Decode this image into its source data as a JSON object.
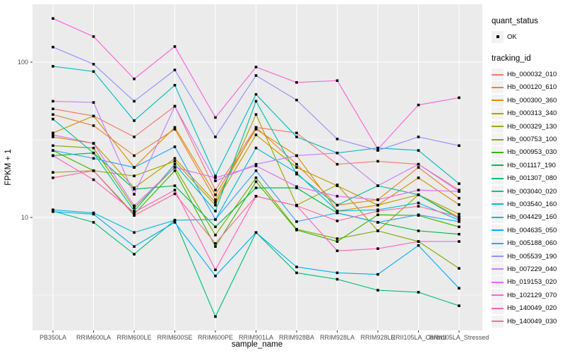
{
  "chart": {
    "panel_bg": "#ebebeb",
    "grid_color": "#ffffff",
    "tick_color": "#333333",
    "tick_label_color": "#4d4d4d",
    "point_color": "#000000",
    "y_tick_labels": [
      "100",
      "10"
    ],
    "y_tick_values": [
      100,
      10
    ]
  },
  "legend": {
    "quant_status_title": "quant_status",
    "quant_status_items": [
      {
        "label": "OK",
        "symbol": "point"
      }
    ],
    "tracking_title": "tracking_id"
  },
  "chart_data": {
    "type": "line",
    "title": "",
    "xlabel": "sample_name",
    "ylabel": "FPKM + 1",
    "y_scale": "log10",
    "ylim": [
      1.9,
      230
    ],
    "grid": true,
    "legend_position": "right",
    "point_shape": "filled-square",
    "x": [
      "PB350LA",
      "RRIM600LA",
      "RRIM600LE",
      "RRIM600SE",
      "RRIM600PE",
      "RRIM901LA",
      "RRIM928BA",
      "RRIM928LA",
      "RRIM928LE",
      "RRII105LA_Control",
      "RRII105LA_Stressed"
    ],
    "series": [
      {
        "name": "Hb_000032_010",
        "color": "#F8766D",
        "values": [
          50,
          45,
          33,
          52,
          15,
          38,
          35,
          22,
          23,
          22,
          15
        ]
      },
      {
        "name": "Hb_000120_610",
        "color": "#EA8331",
        "values": [
          46,
          39,
          25,
          37,
          13,
          38,
          22,
          12,
          13,
          21,
          13.3
        ]
      },
      {
        "name": "Hb_000300_360",
        "color": "#D89000",
        "values": [
          35,
          45,
          21,
          38,
          14,
          37,
          25,
          11,
          12,
          18,
          12.1
        ]
      },
      {
        "name": "Hb_000313_340",
        "color": "#C09B00",
        "values": [
          33,
          30,
          15.5,
          24,
          12.5,
          34,
          21,
          16,
          12,
          14,
          10
        ]
      },
      {
        "name": "Hb_000329_130",
        "color": "#A3A500",
        "values": [
          19.5,
          20,
          18.5,
          23,
          12,
          46,
          12,
          16.2,
          8.2,
          14,
          10.5
        ]
      },
      {
        "name": "Hb_000753_100",
        "color": "#7CAE00",
        "values": [
          29,
          28,
          11.5,
          21,
          7.7,
          18,
          8.4,
          7.3,
          8.2,
          7,
          4.7
        ]
      },
      {
        "name": "Hb_000953_030",
        "color": "#39B600",
        "values": [
          27,
          20,
          10.5,
          20,
          6.5,
          17,
          8.3,
          7,
          10.4,
          10.3,
          8.7
        ]
      },
      {
        "name": "Hb_001117_190",
        "color": "#00BB4E",
        "values": [
          25,
          26,
          15.2,
          16,
          8.7,
          15.5,
          15.5,
          10.7,
          9.3,
          8.2,
          7.8
        ]
      },
      {
        "name": "Hb_001307_080",
        "color": "#00BF7D",
        "values": [
          11,
          9.3,
          5.8,
          9.6,
          2.3,
          8,
          4.4,
          4,
          3.4,
          3.3,
          2.7
        ]
      },
      {
        "name": "Hb_003040_020",
        "color": "#00C1A3",
        "values": [
          43,
          26,
          11,
          22,
          11,
          56,
          19,
          12,
          16,
          14,
          9.8
        ]
      },
      {
        "name": "Hb_003540_160",
        "color": "#00BFC4",
        "values": [
          94,
          87,
          42,
          71,
          18.5,
          62,
          33,
          26,
          28,
          27,
          16.5
        ]
      },
      {
        "name": "Hb_004429_160",
        "color": "#00BAE0",
        "values": [
          11.2,
          10.7,
          8,
          9.6,
          9.7,
          28,
          19.4,
          11,
          11.2,
          12.4,
          9.6
        ]
      },
      {
        "name": "Hb_004635_050",
        "color": "#00B0F6",
        "values": [
          10.9,
          10.5,
          6.5,
          9.3,
          4.2,
          8,
          4.8,
          4.4,
          4.3,
          6.6,
          3.5
        ]
      },
      {
        "name": "Hb_005188_060",
        "color": "#35A2FF",
        "values": [
          27,
          24,
          21,
          28.5,
          9.7,
          20,
          9.4,
          10.7,
          9.3,
          10.4,
          9.4
        ]
      },
      {
        "name": "Hb_005539_190",
        "color": "#9590FF",
        "values": [
          125,
          97,
          56,
          89,
          33,
          82,
          57,
          32,
          27,
          33,
          29
        ]
      },
      {
        "name": "Hb_007229_040",
        "color": "#C77CFF",
        "values": [
          56,
          55,
          14.1,
          52,
          17.2,
          22,
          25,
          26,
          16,
          22,
          14.7
        ]
      },
      {
        "name": "Hb_019153_020",
        "color": "#E76BF3",
        "values": [
          34,
          30,
          11.9,
          21,
          18,
          21.5,
          15.8,
          13.7,
          13,
          15,
          14.7
        ]
      },
      {
        "name": "Hb_102129_070",
        "color": "#FA62DB",
        "values": [
          191,
          146,
          78,
          126,
          44,
          93,
          74,
          76,
          27.5,
          53,
          59
        ]
      },
      {
        "name": "Hb_140049_020",
        "color": "#FF62BC",
        "values": [
          25,
          17.5,
          10.8,
          15,
          4.6,
          13.7,
          11.9,
          6.1,
          6.3,
          7,
          7
        ]
      },
      {
        "name": "Hb_140049_030",
        "color": "#FF6A98",
        "values": [
          18,
          20,
          10.3,
          14.2,
          6.8,
          13.7,
          11.9,
          9.5,
          11,
          11.8,
          10.1
        ]
      }
    ]
  }
}
